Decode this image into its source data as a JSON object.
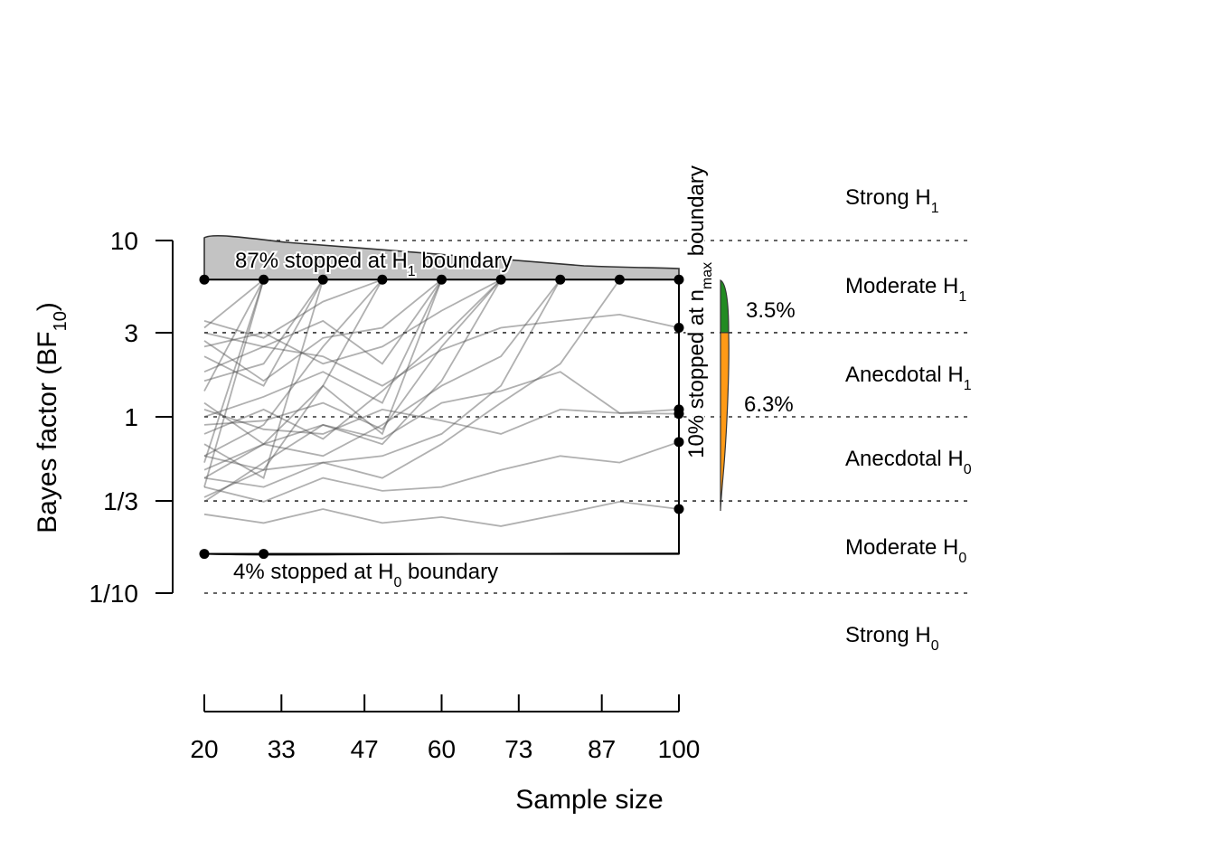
{
  "chart_data": {
    "type": "line",
    "xlabel": "Sample size",
    "ylabel_main": "Bayes factor (BF",
    "ylabel_sub": "10",
    "ylabel_close": ")",
    "x_ticks": [
      "20",
      "33",
      "47",
      "60",
      "73",
      "87",
      "100"
    ],
    "x_tick_values": [
      20,
      33,
      47,
      60,
      73,
      87,
      100
    ],
    "xlim": [
      20,
      100
    ],
    "y_scale": "log",
    "y_ticks": [
      "10",
      "3",
      "1",
      "1/3",
      "1/10"
    ],
    "y_tick_values": [
      10,
      3,
      1,
      0.3333,
      0.1
    ],
    "ylim": [
      0.1,
      10
    ],
    "boundaries": {
      "upper": 6,
      "lower": 0.167
    },
    "reference_lines": [
      10,
      3,
      1,
      0.3333,
      0.1
    ],
    "evidence_categories": [
      {
        "main": "Strong H",
        "sub": "1"
      },
      {
        "main": "Moderate H",
        "sub": "1"
      },
      {
        "main": "Anecdotal H",
        "sub": "1"
      },
      {
        "main": "Anecdotal H",
        "sub": "0"
      },
      {
        "main": "Moderate H",
        "sub": "0"
      },
      {
        "main": "Strong H",
        "sub": "0"
      }
    ],
    "annotations": {
      "upper_pre": "87% stopped at H",
      "upper_sub": "1",
      "upper_post": " boundary",
      "lower_pre": "4% stopped at H",
      "lower_sub": "0",
      "lower_post": " boundary",
      "nmax_pre": "10% stopped at n",
      "nmax_sub": "max",
      "nmax_post": " boundary"
    },
    "nmax_percentages": [
      {
        "label": "3.5%",
        "range": "3 to 6",
        "color": "#228b22"
      },
      {
        "label": "6.3%",
        "range": "1/3 to 3",
        "color": "#ff9a16"
      }
    ],
    "upper_stop_points_x": [
      20,
      30,
      40,
      50,
      60,
      70,
      80,
      90,
      100
    ],
    "lower_stop_points_x": [
      20,
      30
    ],
    "nmax_endpoint_values": [
      3.2,
      1.1,
      1.04,
      0.72,
      0.3
    ],
    "trajectories": [
      {
        "x": [
          20,
          30,
          40,
          50,
          60,
          70,
          80,
          90,
          100
        ],
        "y": [
          3.0,
          2.5,
          2.2,
          1.5,
          2.4,
          3.2,
          3.5,
          3.8,
          3.2
        ]
      },
      {
        "x": [
          20,
          30,
          40,
          50,
          60,
          70,
          80,
          90,
          100
        ],
        "y": [
          0.45,
          0.7,
          0.9,
          0.75,
          1.2,
          1.4,
          1.8,
          1.05,
          1.1
        ]
      },
      {
        "x": [
          20,
          30,
          40,
          50,
          60,
          70,
          80,
          90,
          100
        ],
        "y": [
          1.1,
          0.85,
          0.8,
          1.1,
          0.95,
          0.8,
          1.1,
          1.05,
          1.04
        ]
      },
      {
        "x": [
          20,
          30,
          40,
          50,
          60,
          70,
          80,
          90,
          100
        ],
        "y": [
          0.4,
          0.33,
          0.45,
          0.38,
          0.4,
          0.5,
          0.6,
          0.55,
          0.72
        ]
      },
      {
        "x": [
          20,
          30,
          40,
          50,
          60,
          70,
          80,
          90,
          100
        ],
        "y": [
          0.28,
          0.25,
          0.3,
          0.25,
          0.27,
          0.24,
          0.28,
          0.33,
          0.3
        ]
      },
      {
        "x": [
          20,
          30,
          40,
          50,
          60,
          70,
          80,
          90
        ],
        "y": [
          0.6,
          0.5,
          0.55,
          0.45,
          0.7,
          1.2,
          2.0,
          6
        ]
      },
      {
        "x": [
          20,
          30,
          40,
          50,
          60,
          70,
          80
        ],
        "y": [
          0.5,
          0.7,
          0.6,
          0.9,
          1.5,
          2.2,
          6
        ]
      },
      {
        "x": [
          20,
          30,
          40,
          50,
          60,
          70
        ],
        "y": [
          2.5,
          3.0,
          2.0,
          2.5,
          4.0,
          6
        ]
      },
      {
        "x": [
          20,
          30,
          40,
          50,
          60,
          70
        ],
        "y": [
          0.9,
          0.95,
          1.2,
          0.85,
          2.5,
          6
        ]
      },
      {
        "x": [
          20,
          30,
          40,
          50,
          60
        ],
        "y": [
          1.8,
          2.5,
          3.5,
          2.0,
          6
        ]
      },
      {
        "x": [
          20,
          30,
          40,
          50,
          60
        ],
        "y": [
          0.35,
          0.5,
          1.5,
          0.8,
          6
        ]
      },
      {
        "x": [
          20,
          30,
          40,
          50
        ],
        "y": [
          3.5,
          2.8,
          4.5,
          6
        ]
      },
      {
        "x": [
          20,
          30,
          40,
          50
        ],
        "y": [
          1.2,
          0.7,
          1.5,
          6
        ]
      },
      {
        "x": [
          20,
          30,
          40
        ],
        "y": [
          2.2,
          1.5,
          6
        ]
      },
      {
        "x": [
          20,
          30,
          40
        ],
        "y": [
          0.7,
          0.45,
          6
        ]
      },
      {
        "x": [
          20,
          30
        ],
        "y": [
          3.2,
          6
        ]
      },
      {
        "x": [
          20,
          30
        ],
        "y": [
          1.4,
          6
        ]
      },
      {
        "x": [
          20,
          30
        ],
        "y": [
          0.55,
          6
        ]
      },
      {
        "x": [
          20,
          30,
          40,
          50,
          60,
          70,
          80
        ],
        "y": [
          0.45,
          0.4,
          0.55,
          0.6,
          0.8,
          1.5,
          6
        ]
      },
      {
        "x": [
          20,
          30,
          40,
          50,
          60,
          70
        ],
        "y": [
          0.33,
          0.55,
          0.9,
          0.7,
          1.6,
          6
        ]
      },
      {
        "x": [
          20,
          30,
          40,
          50,
          60
        ],
        "y": [
          2.7,
          1.6,
          2.8,
          3.2,
          6
        ]
      },
      {
        "x": [
          20,
          30,
          40,
          50
        ],
        "y": [
          0.6,
          0.9,
          2.5,
          6
        ]
      },
      {
        "x": [
          20,
          30,
          40,
          50,
          60
        ],
        "y": [
          1.0,
          1.3,
          1.8,
          1.2,
          6
        ]
      },
      {
        "x": [
          20,
          30
        ],
        "y": [
          0.4,
          6
        ]
      },
      {
        "x": [
          20,
          30,
          40,
          50,
          60,
          70
        ],
        "y": [
          0.8,
          1.1,
          0.75,
          1.4,
          2.8,
          6
        ]
      },
      {
        "x": [
          20,
          30,
          40
        ],
        "y": [
          1.6,
          2.0,
          6
        ]
      }
    ]
  }
}
